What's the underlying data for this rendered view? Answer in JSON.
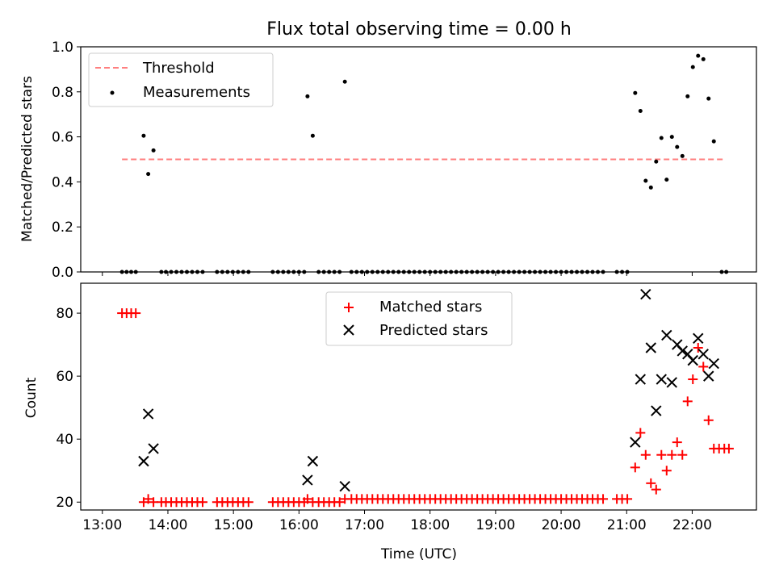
{
  "chart_data": [
    {
      "type": "scatter",
      "title": "Flux total observing time = 0.00 h",
      "ylabel": "Matched/Predicted stars",
      "xlabel": "",
      "xlim": [
        12.67,
        22.98
      ],
      "ylim": [
        0.0,
        1.0
      ],
      "xticks": [
        13,
        14,
        15,
        16,
        17,
        18,
        19,
        20,
        21,
        22
      ],
      "yticks": [
        0.0,
        0.2,
        0.4,
        0.6,
        0.8,
        1.0
      ],
      "ytick_labels": [
        "0.0",
        "0.2",
        "0.4",
        "0.6",
        "0.8",
        "1.0"
      ],
      "legend_position": "upper-left",
      "colors": {
        "threshold": "#ff7f7f",
        "measurements": "#000000"
      },
      "series": [
        {
          "name": "Threshold",
          "kind": "dashed-line",
          "x": [
            13.3,
            22.5
          ],
          "y": [
            0.5,
            0.5
          ]
        },
        {
          "name": "Measurements",
          "kind": "points",
          "points": [
            [
              13.3,
              0
            ],
            [
              13.37,
              0
            ],
            [
              13.44,
              0
            ],
            [
              13.51,
              0
            ],
            [
              13.63,
              0.605
            ],
            [
              13.7,
              0.435
            ],
            [
              13.78,
              0.54
            ],
            [
              13.9,
              0
            ],
            [
              13.97,
              0
            ],
            [
              14.05,
              0
            ],
            [
              14.13,
              0
            ],
            [
              14.21,
              0
            ],
            [
              14.29,
              0
            ],
            [
              14.37,
              0
            ],
            [
              14.45,
              0
            ],
            [
              14.53,
              0
            ],
            [
              14.75,
              0
            ],
            [
              14.83,
              0
            ],
            [
              14.91,
              0
            ],
            [
              14.99,
              0
            ],
            [
              15.07,
              0
            ],
            [
              15.15,
              0
            ],
            [
              15.23,
              0
            ],
            [
              15.6,
              0
            ],
            [
              15.68,
              0
            ],
            [
              15.76,
              0
            ],
            [
              15.84,
              0
            ],
            [
              15.92,
              0
            ],
            [
              16.0,
              0
            ],
            [
              16.08,
              0
            ],
            [
              16.13,
              0.78
            ],
            [
              16.21,
              0.605
            ],
            [
              16.3,
              0
            ],
            [
              16.38,
              0
            ],
            [
              16.46,
              0
            ],
            [
              16.54,
              0
            ],
            [
              16.62,
              0
            ],
            [
              16.7,
              0.845
            ],
            [
              16.8,
              0
            ],
            [
              16.88,
              0
            ],
            [
              16.96,
              0
            ],
            [
              17.04,
              0
            ],
            [
              17.12,
              0
            ],
            [
              17.2,
              0
            ],
            [
              17.28,
              0
            ],
            [
              17.36,
              0
            ],
            [
              17.44,
              0
            ],
            [
              17.52,
              0
            ],
            [
              17.6,
              0
            ],
            [
              17.68,
              0
            ],
            [
              17.76,
              0
            ],
            [
              17.84,
              0
            ],
            [
              17.92,
              0
            ],
            [
              18.0,
              0
            ],
            [
              18.08,
              0
            ],
            [
              18.16,
              0
            ],
            [
              18.24,
              0
            ],
            [
              18.32,
              0
            ],
            [
              18.4,
              0
            ],
            [
              18.48,
              0
            ],
            [
              18.56,
              0
            ],
            [
              18.64,
              0
            ],
            [
              18.72,
              0
            ],
            [
              18.8,
              0
            ],
            [
              18.88,
              0
            ],
            [
              18.96,
              0
            ],
            [
              19.04,
              0
            ],
            [
              19.12,
              0
            ],
            [
              19.2,
              0
            ],
            [
              19.28,
              0
            ],
            [
              19.36,
              0
            ],
            [
              19.44,
              0
            ],
            [
              19.52,
              0
            ],
            [
              19.6,
              0
            ],
            [
              19.68,
              0
            ],
            [
              19.76,
              0
            ],
            [
              19.84,
              0
            ],
            [
              19.92,
              0
            ],
            [
              20.0,
              0
            ],
            [
              20.08,
              0
            ],
            [
              20.16,
              0
            ],
            [
              20.24,
              0
            ],
            [
              20.32,
              0
            ],
            [
              20.4,
              0
            ],
            [
              20.48,
              0
            ],
            [
              20.56,
              0
            ],
            [
              20.64,
              0
            ],
            [
              20.85,
              0
            ],
            [
              20.93,
              0
            ],
            [
              21.01,
              0
            ],
            [
              21.13,
              0.795
            ],
            [
              21.21,
              0.715
            ],
            [
              21.29,
              0.405
            ],
            [
              21.37,
              0.375
            ],
            [
              21.45,
              0.49
            ],
            [
              21.53,
              0.595
            ],
            [
              21.61,
              0.41
            ],
            [
              21.69,
              0.6
            ],
            [
              21.77,
              0.555
            ],
            [
              21.85,
              0.515
            ],
            [
              21.93,
              0.78
            ],
            [
              22.01,
              0.91
            ],
            [
              22.09,
              0.96
            ],
            [
              22.17,
              0.945
            ],
            [
              22.25,
              0.77
            ],
            [
              22.33,
              0.58
            ],
            [
              22.45,
              0
            ],
            [
              22.52,
              0
            ]
          ]
        }
      ]
    },
    {
      "type": "scatter",
      "title": "",
      "ylabel": "Count",
      "xlabel": "Time (UTC)",
      "xlim": [
        12.67,
        22.98
      ],
      "ylim": [
        17.5,
        89.5
      ],
      "xticks": [
        13,
        14,
        15,
        16,
        17,
        18,
        19,
        20,
        21,
        22
      ],
      "xtick_labels": [
        "13:00",
        "14:00",
        "15:00",
        "16:00",
        "17:00",
        "18:00",
        "19:00",
        "20:00",
        "21:00",
        "22:00"
      ],
      "yticks": [
        20,
        40,
        60,
        80
      ],
      "ytick_labels": [
        "20",
        "40",
        "60",
        "80"
      ],
      "legend_position": "upper-center",
      "colors": {
        "matched": "#ff0000",
        "predicted": "#000000"
      },
      "series": [
        {
          "name": "Matched stars",
          "marker": "plus",
          "points": [
            [
              13.3,
              80
            ],
            [
              13.37,
              80
            ],
            [
              13.44,
              80
            ],
            [
              13.51,
              80
            ],
            [
              13.63,
              20
            ],
            [
              13.7,
              21
            ],
            [
              13.78,
              20
            ],
            [
              13.9,
              20
            ],
            [
              13.97,
              20
            ],
            [
              14.05,
              20
            ],
            [
              14.13,
              20
            ],
            [
              14.21,
              20
            ],
            [
              14.29,
              20
            ],
            [
              14.37,
              20
            ],
            [
              14.45,
              20
            ],
            [
              14.53,
              20
            ],
            [
              14.75,
              20
            ],
            [
              14.83,
              20
            ],
            [
              14.91,
              20
            ],
            [
              14.99,
              20
            ],
            [
              15.07,
              20
            ],
            [
              15.15,
              20
            ],
            [
              15.23,
              20
            ],
            [
              15.6,
              20
            ],
            [
              15.68,
              20
            ],
            [
              15.76,
              20
            ],
            [
              15.84,
              20
            ],
            [
              15.92,
              20
            ],
            [
              16.0,
              20
            ],
            [
              16.08,
              20
            ],
            [
              16.13,
              21
            ],
            [
              16.21,
              20
            ],
            [
              16.3,
              20
            ],
            [
              16.38,
              20
            ],
            [
              16.46,
              20
            ],
            [
              16.54,
              20
            ],
            [
              16.62,
              20
            ],
            [
              16.7,
              21
            ],
            [
              16.8,
              21
            ],
            [
              16.88,
              21
            ],
            [
              16.96,
              21
            ],
            [
              17.04,
              21
            ],
            [
              17.12,
              21
            ],
            [
              17.2,
              21
            ],
            [
              17.28,
              21
            ],
            [
              17.36,
              21
            ],
            [
              17.44,
              21
            ],
            [
              17.52,
              21
            ],
            [
              17.6,
              21
            ],
            [
              17.68,
              21
            ],
            [
              17.76,
              21
            ],
            [
              17.84,
              21
            ],
            [
              17.92,
              21
            ],
            [
              18.0,
              21
            ],
            [
              18.08,
              21
            ],
            [
              18.16,
              21
            ],
            [
              18.24,
              21
            ],
            [
              18.32,
              21
            ],
            [
              18.4,
              21
            ],
            [
              18.48,
              21
            ],
            [
              18.56,
              21
            ],
            [
              18.64,
              21
            ],
            [
              18.72,
              21
            ],
            [
              18.8,
              21
            ],
            [
              18.88,
              21
            ],
            [
              18.96,
              21
            ],
            [
              19.04,
              21
            ],
            [
              19.12,
              21
            ],
            [
              19.2,
              21
            ],
            [
              19.28,
              21
            ],
            [
              19.36,
              21
            ],
            [
              19.44,
              21
            ],
            [
              19.52,
              21
            ],
            [
              19.6,
              21
            ],
            [
              19.68,
              21
            ],
            [
              19.76,
              21
            ],
            [
              19.84,
              21
            ],
            [
              19.92,
              21
            ],
            [
              20.0,
              21
            ],
            [
              20.08,
              21
            ],
            [
              20.16,
              21
            ],
            [
              20.24,
              21
            ],
            [
              20.32,
              21
            ],
            [
              20.4,
              21
            ],
            [
              20.48,
              21
            ],
            [
              20.56,
              21
            ],
            [
              20.64,
              21
            ],
            [
              20.85,
              21
            ],
            [
              20.93,
              21
            ],
            [
              21.01,
              21
            ],
            [
              21.13,
              31
            ],
            [
              21.21,
              42
            ],
            [
              21.29,
              35
            ],
            [
              21.37,
              26
            ],
            [
              21.45,
              24
            ],
            [
              21.53,
              35
            ],
            [
              21.61,
              30
            ],
            [
              21.69,
              35
            ],
            [
              21.77,
              39
            ],
            [
              21.85,
              35
            ],
            [
              21.93,
              52
            ],
            [
              22.01,
              59
            ],
            [
              22.09,
              69
            ],
            [
              22.17,
              63
            ],
            [
              22.25,
              46
            ],
            [
              22.33,
              37
            ],
            [
              22.41,
              37
            ],
            [
              22.49,
              37
            ],
            [
              22.56,
              37
            ]
          ]
        },
        {
          "name": "Predicted stars",
          "marker": "x",
          "points": [
            [
              13.63,
              33
            ],
            [
              13.7,
              48
            ],
            [
              13.78,
              37
            ],
            [
              16.13,
              27
            ],
            [
              16.21,
              33
            ],
            [
              16.7,
              25
            ],
            [
              21.13,
              39
            ],
            [
              21.21,
              59
            ],
            [
              21.29,
              86
            ],
            [
              21.37,
              69
            ],
            [
              21.45,
              49
            ],
            [
              21.53,
              59
            ],
            [
              21.61,
              73
            ],
            [
              21.69,
              58
            ],
            [
              21.77,
              70
            ],
            [
              21.85,
              68
            ],
            [
              21.93,
              67
            ],
            [
              22.01,
              65
            ],
            [
              22.09,
              72
            ],
            [
              22.17,
              67
            ],
            [
              22.25,
              60
            ],
            [
              22.33,
              64
            ]
          ]
        }
      ]
    }
  ]
}
